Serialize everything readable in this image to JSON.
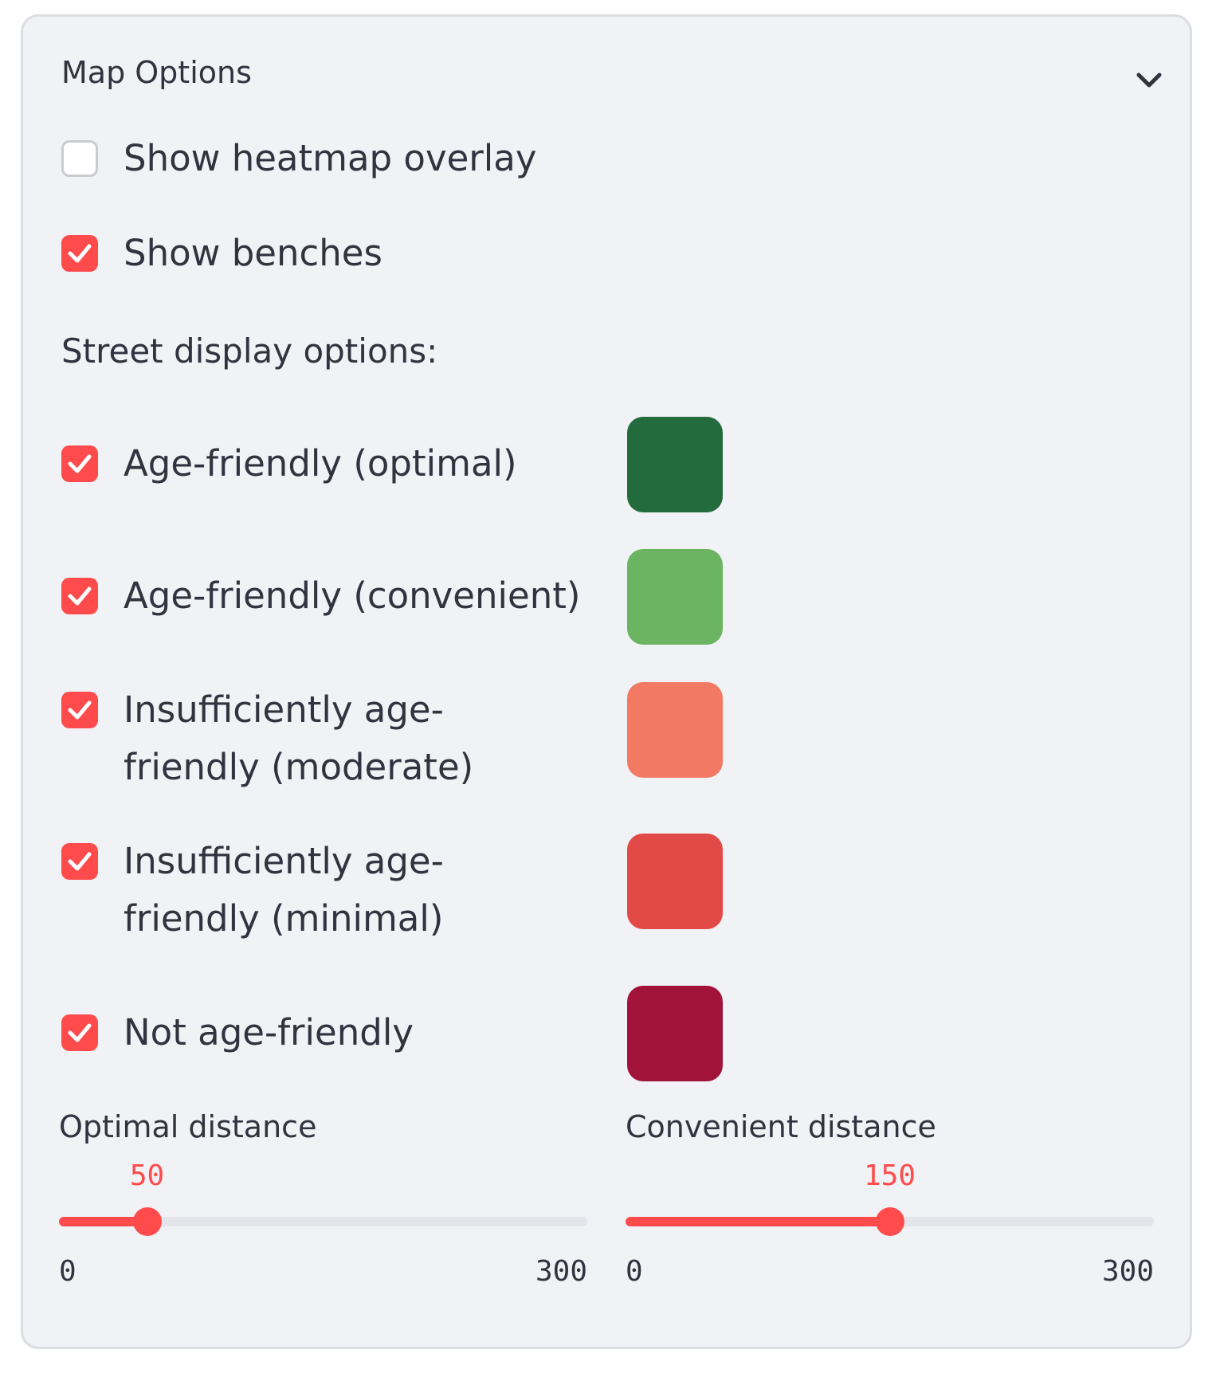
{
  "panel": {
    "title": "Map Options"
  },
  "checkboxes": {
    "heatmap": {
      "label": "Show heatmap overlay",
      "checked": false
    },
    "benches": {
      "label": "Show benches",
      "checked": true
    }
  },
  "street": {
    "heading": "Street display options:",
    "options": [
      {
        "label": "Age-friendly (optimal)",
        "checked": true,
        "color": "#236b3c"
      },
      {
        "label": "Age-friendly (convenient)",
        "checked": true,
        "color": "#6bb562"
      },
      {
        "label": "Insufficiently age-friendly (moderate)",
        "checked": true,
        "color": "#f27a64"
      },
      {
        "label": "Insufficiently age-friendly (minimal)",
        "checked": true,
        "color": "#e24a48"
      },
      {
        "label": "Not age-friendly",
        "checked": true,
        "color": "#a2133a"
      }
    ]
  },
  "sliders": {
    "optimal": {
      "label": "Optimal distance",
      "value": "50",
      "min": "0",
      "max": "300"
    },
    "convenient": {
      "label": "Convenient distance",
      "value": "150",
      "min": "0",
      "max": "300"
    }
  },
  "colors": {
    "accent": "#ff4b4b",
    "panel_bg": "#f0f2f6",
    "text": "#31333f"
  },
  "icons": {
    "expander": "chevron-down-icon",
    "checked": "checkmark-icon"
  }
}
